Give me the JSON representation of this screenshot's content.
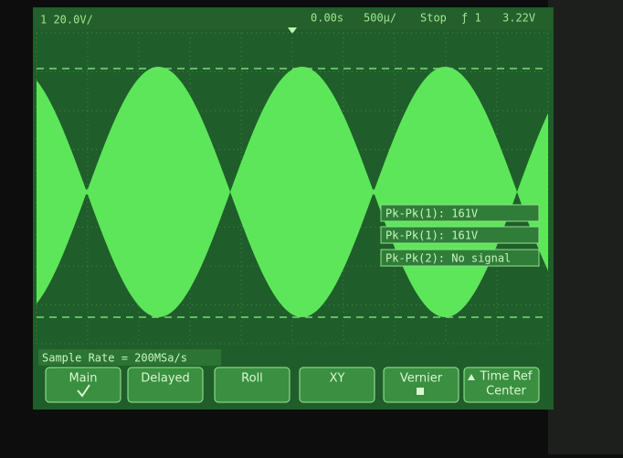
{
  "status_bar": {
    "channel_scale": "1 20.0V/",
    "time_offset": "0.00s",
    "time_scale": "500µ/",
    "run_state": "Stop",
    "trigger": "ƒ 1",
    "trigger_level": "3.22V"
  },
  "measurements": [
    "Pk-Pk(1): 161V",
    "Pk-Pk(1): 161V",
    "Pk-Pk(2): No signal"
  ],
  "sample_rate": "Sample Rate = 200MSa/s",
  "softkeys": [
    {
      "label": "Main"
    },
    {
      "label": "Delayed"
    },
    {
      "label": "Roll"
    },
    {
      "label": "XY"
    },
    {
      "label": "Vernier"
    },
    {
      "label": "Time Ref",
      "sub": "Center"
    }
  ]
}
